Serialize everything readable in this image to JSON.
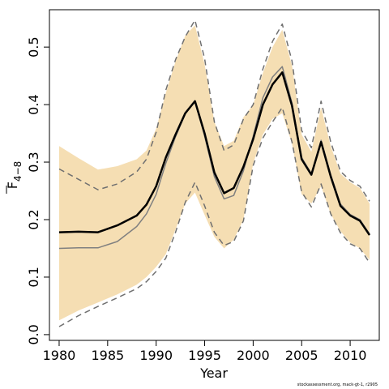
{
  "chart_data": {
    "type": "line",
    "xlabel": "Year",
    "ylabel": "F",
    "ylabel_subscript": "4−8",
    "xlim": [
      1979,
      2013
    ],
    "ylim": [
      -0.01,
      0.565
    ],
    "x_ticks": [
      1980,
      1985,
      1990,
      1995,
      2000,
      2005,
      2010
    ],
    "y_ticks": [
      0.0,
      0.1,
      0.2,
      0.3,
      0.4,
      0.5
    ],
    "y_tick_labels": [
      "0.0",
      "0.1",
      "0.2",
      "0.3",
      "0.4",
      "0.5"
    ],
    "grid": false,
    "colors": {
      "band": "#f5deb3",
      "estimate": "#000000",
      "secondary_estimate": "#808080",
      "secondary_bounds": "#707070"
    },
    "x": [
      1980,
      1982,
      1984,
      1986,
      1988,
      1989,
      1990,
      1991,
      1992,
      1993,
      1994,
      1995,
      1996,
      1997,
      1998,
      1999,
      2000,
      2001,
      2002,
      2003,
      2004,
      2005,
      2006,
      2007,
      2008,
      2009,
      2010,
      2011,
      2012
    ],
    "band_upper": [
      0.328,
      0.307,
      0.287,
      0.293,
      0.305,
      0.32,
      0.358,
      0.42,
      0.475,
      0.52,
      0.538,
      0.47,
      0.37,
      0.328,
      0.337,
      0.378,
      0.4,
      0.455,
      0.5,
      0.53,
      0.468,
      0.348,
      0.318,
      0.395,
      0.328,
      0.28,
      0.265,
      0.255,
      0.228
    ],
    "band_lower": [
      0.025,
      0.042,
      0.056,
      0.07,
      0.087,
      0.1,
      0.118,
      0.14,
      0.183,
      0.228,
      0.247,
      0.208,
      0.17,
      0.15,
      0.165,
      0.2,
      0.298,
      0.348,
      0.375,
      0.385,
      0.332,
      0.244,
      0.228,
      0.258,
      0.21,
      0.18,
      0.16,
      0.15,
      0.13
    ],
    "series": [
      {
        "values": [
          0.178,
          0.179,
          0.178,
          0.19,
          0.207,
          0.226,
          0.258,
          0.308,
          0.348,
          0.385,
          0.406,
          0.35,
          0.282,
          0.246,
          0.255,
          0.292,
          0.34,
          0.4,
          0.435,
          0.456,
          0.398,
          0.305,
          0.278,
          0.335,
          0.275,
          0.224,
          0.207,
          0.198,
          0.173
        ]
      },
      {
        "values": [
          0.15,
          0.151,
          0.151,
          0.162,
          0.188,
          0.21,
          0.244,
          0.298,
          0.344,
          0.384,
          0.406,
          0.345,
          0.275,
          0.236,
          0.242,
          0.285,
          0.345,
          0.412,
          0.448,
          0.466,
          0.403,
          0.308,
          0.28,
          0.338,
          0.278,
          0.227,
          0.209,
          0.2,
          0.175
        ]
      },
      {
        "values": [
          0.288,
          0.27,
          0.252,
          0.262,
          0.283,
          0.305,
          0.352,
          0.425,
          0.478,
          0.518,
          0.547,
          0.48,
          0.37,
          0.32,
          0.33,
          0.375,
          0.4,
          0.462,
          0.51,
          0.54,
          0.476,
          0.355,
          0.325,
          0.406,
          0.335,
          0.284,
          0.268,
          0.258,
          0.232
        ]
      },
      {
        "values": [
          0.014,
          0.033,
          0.049,
          0.064,
          0.08,
          0.092,
          0.11,
          0.133,
          0.178,
          0.23,
          0.265,
          0.224,
          0.178,
          0.155,
          0.162,
          0.198,
          0.294,
          0.342,
          0.37,
          0.395,
          0.335,
          0.248,
          0.222,
          0.262,
          0.21,
          0.177,
          0.158,
          0.15,
          0.125
        ]
      }
    ]
  },
  "footer_text": "stockassessment.org, mack-gt-1, r2905"
}
